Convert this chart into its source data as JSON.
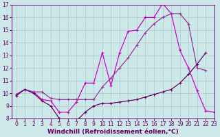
{
  "title": "",
  "xlabel": "Windchill (Refroidissement éolien,°C)",
  "ylabel": "",
  "bg_color": "#cce8e8",
  "line_color1": "#cc00cc",
  "line_color2": "#993399",
  "line_color3": "#660066",
  "xlim": [
    -0.5,
    23
  ],
  "ylim": [
    8,
    17
  ],
  "xticks": [
    0,
    1,
    2,
    3,
    4,
    5,
    6,
    7,
    8,
    9,
    10,
    11,
    12,
    13,
    14,
    15,
    16,
    17,
    18,
    19,
    20,
    21,
    22,
    23
  ],
  "yticks": [
    8,
    9,
    10,
    11,
    12,
    13,
    14,
    15,
    16,
    17
  ],
  "line1_x": [
    0,
    1,
    2,
    3,
    4,
    5,
    6,
    7,
    8,
    9,
    10,
    11,
    12,
    13,
    14,
    15,
    16,
    17,
    18,
    19,
    20,
    21,
    22,
    23
  ],
  "line1_y": [
    9.9,
    10.3,
    10.1,
    9.5,
    9.4,
    8.5,
    8.5,
    9.3,
    10.8,
    10.8,
    13.2,
    10.6,
    13.2,
    14.9,
    15.0,
    16.0,
    16.0,
    17.1,
    16.3,
    13.4,
    12.0,
    10.2,
    8.6,
    8.5
  ],
  "line2_x": [
    0,
    1,
    2,
    3,
    4,
    5,
    6,
    7,
    8,
    9,
    10,
    11,
    12,
    13,
    14,
    15,
    16,
    17,
    18,
    19,
    20,
    21,
    22,
    23
  ],
  "line2_y": [
    9.9,
    10.3,
    10.1,
    10.1,
    9.6,
    9.5,
    9.5,
    9.5,
    9.5,
    9.5,
    10.5,
    11.2,
    12.0,
    12.8,
    13.8,
    14.8,
    15.5,
    16.0,
    16.3,
    16.3,
    15.5,
    12.0,
    11.8,
    null
  ],
  "line3_x": [
    0,
    1,
    2,
    3,
    4,
    5,
    6,
    7,
    8,
    9,
    10,
    11,
    12,
    13,
    14,
    15,
    16,
    17,
    18,
    19,
    20,
    21,
    22,
    23
  ],
  "line3_y": [
    9.8,
    10.3,
    10.0,
    9.4,
    9.0,
    8.0,
    7.8,
    7.8,
    8.5,
    9.0,
    9.2,
    9.2,
    9.3,
    9.4,
    9.5,
    9.7,
    9.9,
    10.1,
    10.3,
    10.8,
    11.5,
    12.3,
    13.2,
    null
  ],
  "marker": "+",
  "marker_size": 3,
  "linewidth": 0.9,
  "grid_color": "#aacccc",
  "xlabel_fontsize": 6.5,
  "tick_fontsize": 5.5
}
